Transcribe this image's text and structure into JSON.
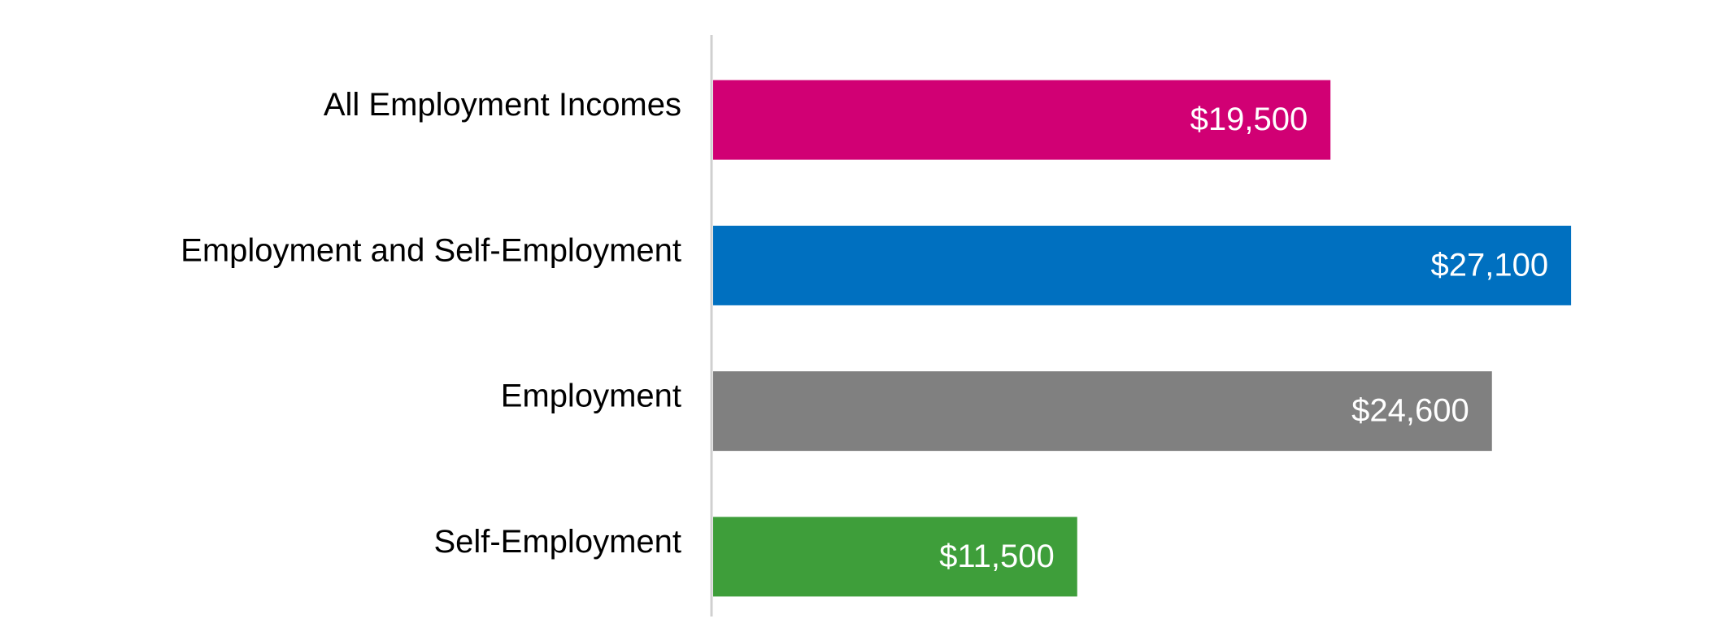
{
  "chart_data": {
    "type": "bar",
    "orientation": "horizontal",
    "categories": [
      "All Employment Incomes",
      "Employment and Self-Employment",
      "Employment",
      "Self-Employment"
    ],
    "values": [
      19500,
      27100,
      24600,
      11500
    ],
    "value_labels": [
      "$19,500",
      "$27,100",
      "$24,600",
      "$11,500"
    ],
    "colors": [
      "#d10074",
      "#0070c0",
      "#808080",
      "#3e9e3a"
    ],
    "xlim": [
      0,
      30000
    ]
  }
}
